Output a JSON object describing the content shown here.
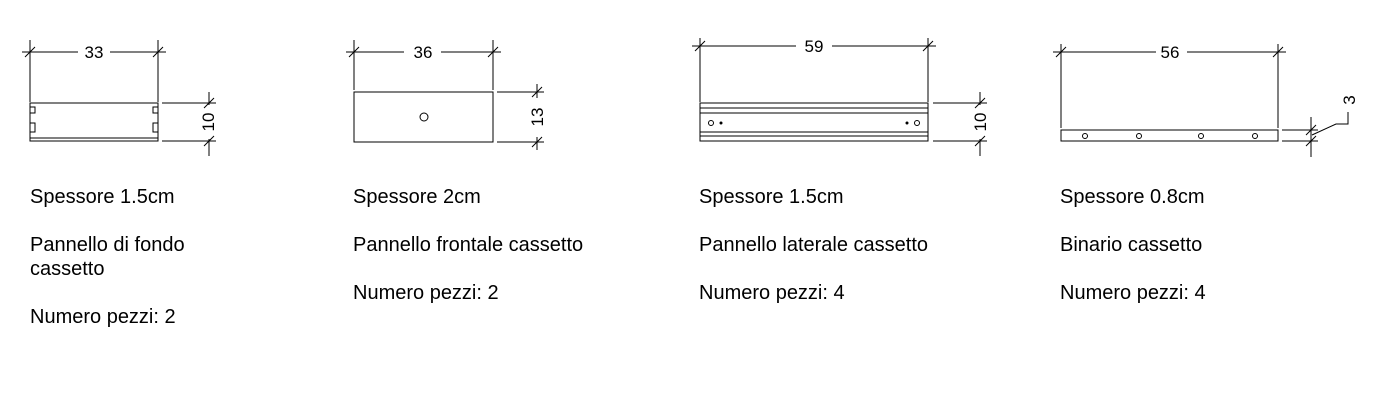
{
  "parts": [
    {
      "width_dim": "33",
      "height_dim": "10",
      "thickness": "Spessore 1.5cm",
      "name": "Pannello di fondo cassetto",
      "quantity": "Numero pezzi: 2"
    },
    {
      "width_dim": "36",
      "height_dim": "13",
      "thickness": "Spessore 2cm",
      "name": "Pannello frontale cassetto",
      "quantity": "Numero pezzi: 2"
    },
    {
      "width_dim": "59",
      "height_dim": "10",
      "thickness": "Spessore 1.5cm",
      "name": "Pannello laterale cassetto",
      "quantity": "Numero pezzi: 4"
    },
    {
      "width_dim": "56",
      "height_dim": "3",
      "thickness": "Spessore 0.8cm",
      "name": "Binario cassetto",
      "quantity": "Numero pezzi: 4"
    }
  ]
}
